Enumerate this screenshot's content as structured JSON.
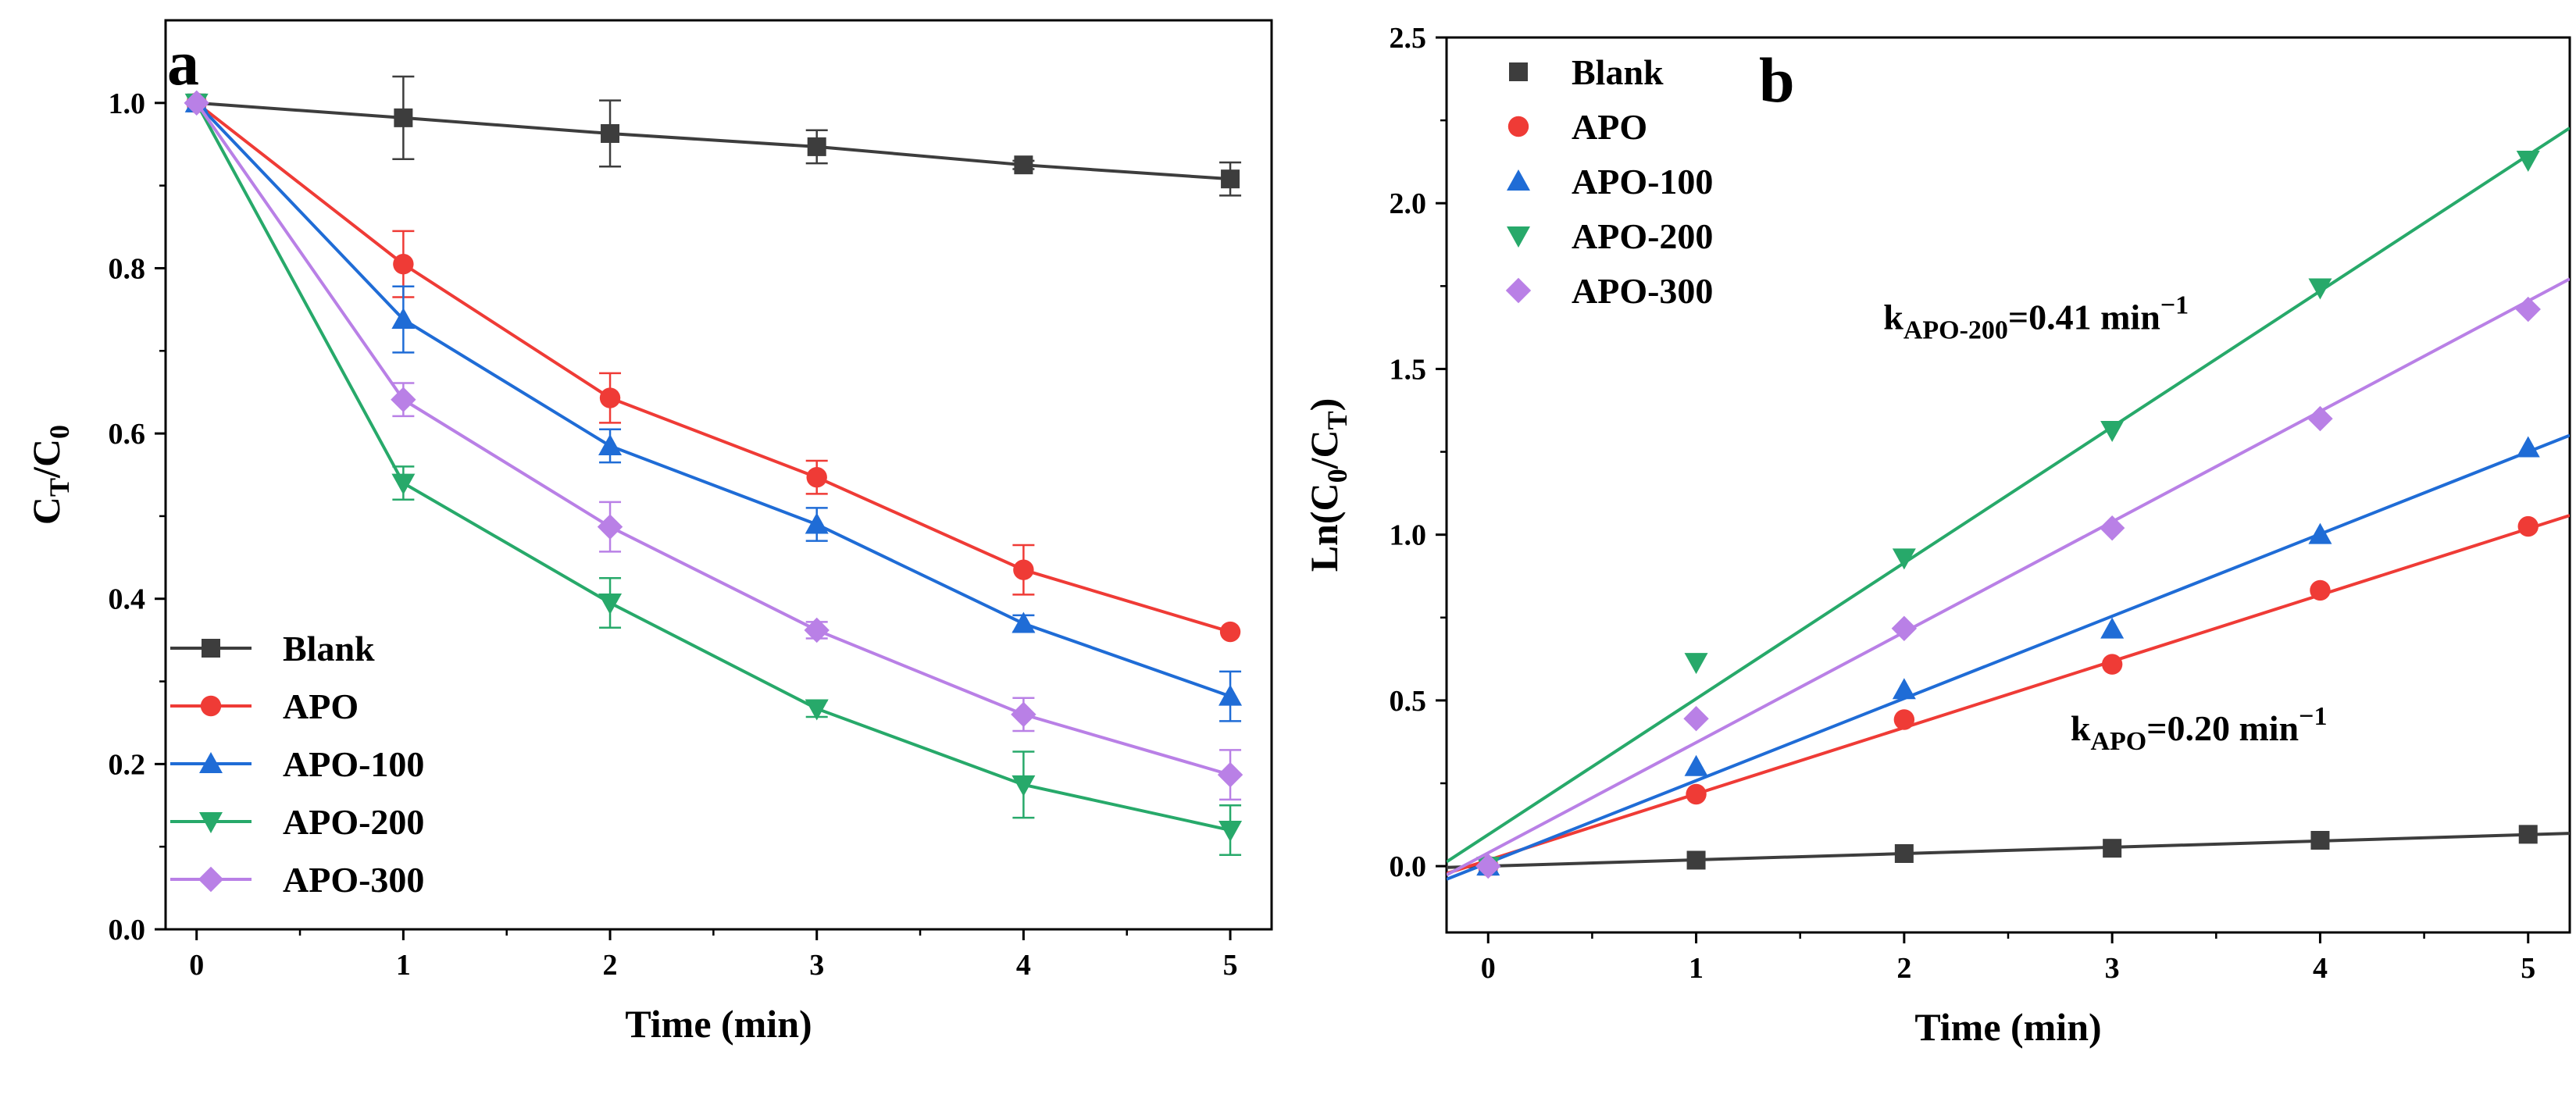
{
  "chart_data": [
    {
      "type": "line",
      "panel_label": "a",
      "xlabel": "Time (min)",
      "ylabel": "C_T/C_0",
      "ylabel_parts": {
        "base1": "C",
        "sub1": "T",
        "slash": "/",
        "base2": "C",
        "sub2": "0"
      },
      "xlim": [
        -0.15,
        5.2
      ],
      "ylim": [
        0,
        1.1
      ],
      "xticks": [
        0,
        1,
        2,
        3,
        4,
        5
      ],
      "xtick_labels": [
        "0",
        "1",
        "2",
        "3",
        "4",
        "5"
      ],
      "yticks": [
        0.0,
        0.2,
        0.4,
        0.6,
        0.8,
        1.0
      ],
      "ytick_labels": [
        "0.0",
        "0.2",
        "0.4",
        "0.6",
        "0.8",
        "1.0"
      ],
      "legend_position": "bottom-left",
      "x": [
        0,
        1,
        2,
        3,
        4,
        5
      ],
      "series": [
        {
          "name": "Blank",
          "color": "#3d3d3d",
          "marker": "square",
          "values": [
            1.0,
            0.982,
            0.963,
            0.947,
            0.925,
            0.908
          ],
          "errors": [
            0.0,
            0.05,
            0.04,
            0.02,
            0.005,
            0.02
          ]
        },
        {
          "name": "APO",
          "color": "#ef3b36",
          "marker": "circle",
          "values": [
            1.0,
            0.805,
            0.643,
            0.547,
            0.435,
            0.36
          ],
          "errors": [
            0.0,
            0.04,
            0.03,
            0.02,
            0.03,
            0.0
          ]
        },
        {
          "name": "APO-100",
          "color": "#1f6cd6",
          "marker": "triangle-up",
          "values": [
            1.0,
            0.738,
            0.585,
            0.49,
            0.37,
            0.282
          ],
          "errors": [
            0.0,
            0.04,
            0.02,
            0.02,
            0.01,
            0.03
          ]
        },
        {
          "name": "APO-200",
          "color": "#27a96a",
          "marker": "triangle-down",
          "values": [
            1.0,
            0.54,
            0.395,
            0.267,
            0.175,
            0.12
          ],
          "errors": [
            0.0,
            0.02,
            0.03,
            0.01,
            0.04,
            0.03
          ]
        },
        {
          "name": "APO-300",
          "color": "#b980e6",
          "marker": "diamond",
          "values": [
            1.0,
            0.641,
            0.487,
            0.362,
            0.26,
            0.187
          ],
          "errors": [
            0.0,
            0.02,
            0.03,
            0.01,
            0.02,
            0.03
          ]
        }
      ]
    },
    {
      "type": "scatter",
      "panel_label": "b",
      "xlabel": "Time (min)",
      "ylabel": "Ln(C_0/C_T)",
      "ylabel_parts": {
        "pre": "Ln(C",
        "sub1": "0",
        "mid": "/C",
        "sub2": "T",
        "post": ")"
      },
      "xlim": [
        -0.2,
        5.2
      ],
      "ylim": [
        -0.2,
        2.5
      ],
      "xticks": [
        0,
        1,
        2,
        3,
        4,
        5
      ],
      "xtick_labels": [
        "0",
        "1",
        "2",
        "3",
        "4",
        "5"
      ],
      "yticks": [
        0.0,
        0.5,
        1.0,
        1.5,
        2.0,
        2.5
      ],
      "ytick_labels": [
        "0.0",
        "0.5",
        "1.0",
        "1.5",
        "2.0",
        "2.5"
      ],
      "legend_position": "top-left",
      "x": [
        0,
        1,
        2,
        3,
        4,
        5
      ],
      "series": [
        {
          "name": "Blank",
          "color": "#3d3d3d",
          "marker": "square",
          "values": [
            0.0,
            0.018,
            0.038,
            0.054,
            0.078,
            0.096
          ],
          "fit": {
            "slope": 0.019,
            "intercept": 0.0
          }
        },
        {
          "name": "APO",
          "color": "#ef3b36",
          "marker": "circle",
          "values": [
            0.0,
            0.217,
            0.442,
            0.609,
            0.832,
            1.025
          ],
          "fit": {
            "slope": 0.2,
            "intercept": 0.018
          }
        },
        {
          "name": "APO-100",
          "color": "#1f6cd6",
          "marker": "triangle-up",
          "values": [
            0.0,
            0.3,
            0.532,
            0.715,
            1.0,
            1.262
          ],
          "fit": {
            "slope": 0.248,
            "intercept": 0.01
          }
        },
        {
          "name": "APO-200",
          "color": "#27a96a",
          "marker": "triangle-down",
          "values": [
            0.0,
            0.615,
            0.93,
            1.315,
            1.745,
            2.13
          ],
          "fit": {
            "slope": 0.41,
            "intercept": 0.095
          }
        },
        {
          "name": "APO-300",
          "color": "#b980e6",
          "marker": "diamond",
          "values": [
            0.0,
            0.445,
            0.717,
            1.02,
            1.35,
            1.68
          ],
          "fit": {
            "slope": 0.333,
            "intercept": 0.04
          }
        }
      ],
      "annotations": [
        {
          "label_id": "k-apo-200",
          "base": "k",
          "sub": "APO-200",
          "text": "=0.41 min",
          "sup": "−1",
          "anchor_x": 1.9,
          "anchor_y": 1.62
        },
        {
          "label_id": "k-apo",
          "base": "k",
          "sub": "APO",
          "text": "=0.20 min",
          "sup": "−1",
          "anchor_x": 2.8,
          "anchor_y": 0.38
        }
      ]
    }
  ]
}
